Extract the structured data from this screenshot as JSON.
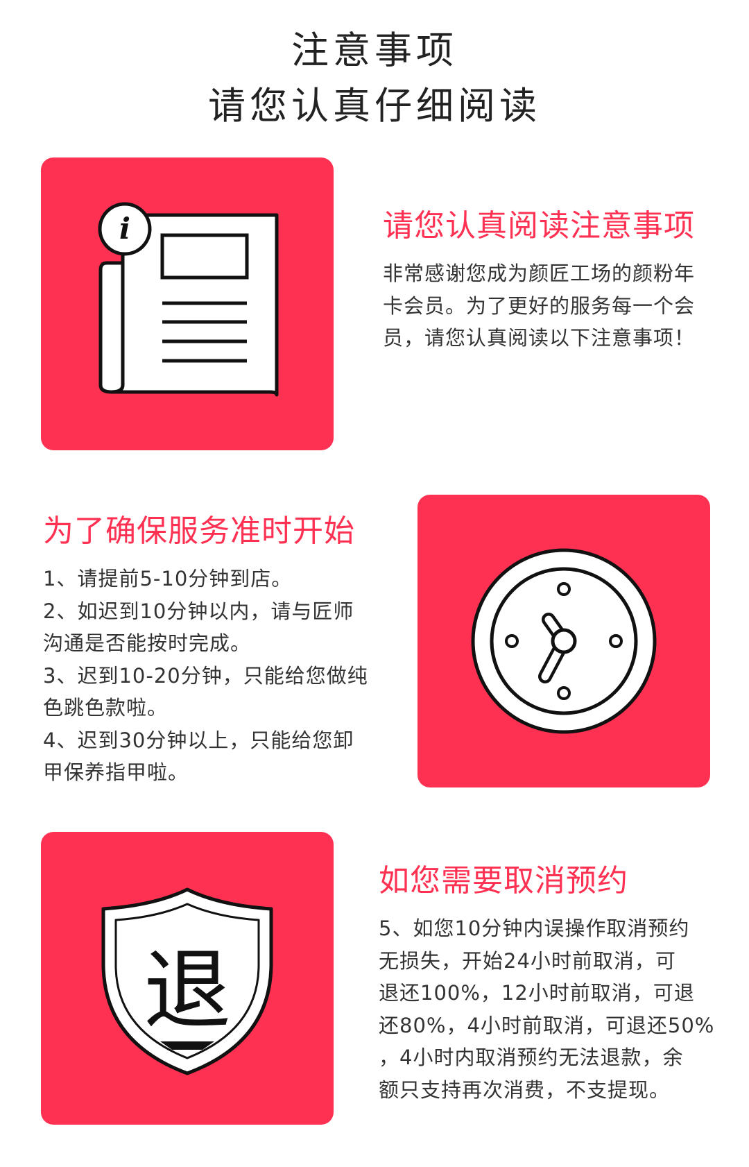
{
  "header": {
    "title": "注意事项",
    "subtitle": "请您认真仔细阅读"
  },
  "sections": [
    {
      "icon": "newsletter-info-icon",
      "info_letter": "i",
      "heading": "请您认真阅读注意事项",
      "body": "非常感谢您成为颜匠工场的颜粉年\n卡会员。为了更好的服务每一个会\n员，请您认真阅读以下注意事项！"
    },
    {
      "icon": "clock-icon",
      "heading": "为了确保服务准时开始",
      "body": "1、请提前5-10分钟到店。\n2、如迟到10分钟以内，请与匠师\n沟通是否能按时完成。\n3、迟到10-20分钟，只能给您做纯\n色跳色款啦。\n4、迟到30分钟以上，只能给您卸\n甲保养指甲啦。"
    },
    {
      "icon": "refund-shield-icon",
      "shield_char": "退",
      "heading": "如您需要取消预约",
      "body": "5、如您10分钟内误操作取消预约\n无损失，开始24小时前取消，可\n退还100%，12小时前取消，可退\n还80%，4小时前取消，可退还50%\n，4小时内取消预约无法退款，余\n额只支持再次消费，不支提现。"
    }
  ],
  "colors": {
    "accent": "#fe3152",
    "text": "#333333",
    "title": "#222222"
  }
}
